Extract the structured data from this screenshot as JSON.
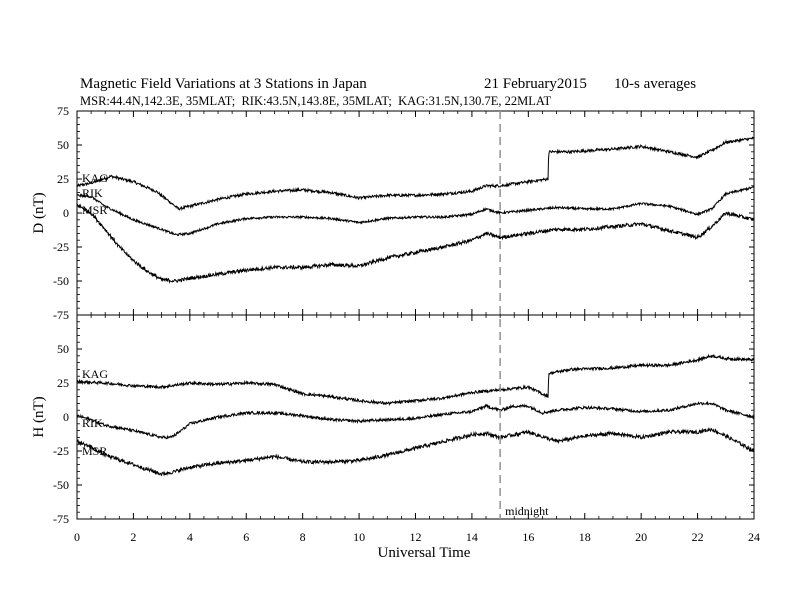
{
  "chart_data": {
    "type": "line",
    "title": "Magnetic Field Variations at 3 Stations in Japan",
    "date": "21 February2015",
    "averaging": "10-s averages",
    "subtitle": "MSR:44.4N,142.3E, 35MLAT;  RIK:43.5N,143.8E, 35MLAT;  KAG:31.5N,130.7E, 22MLAT",
    "xlabel": "Universal Time",
    "xlim": [
      0,
      24
    ],
    "xticks": [
      0,
      2,
      4,
      6,
      8,
      10,
      12,
      14,
      16,
      18,
      20,
      22,
      24
    ],
    "marker": {
      "x": 15,
      "label": "midnight"
    },
    "panels": [
      {
        "ylabel": "D (nT)",
        "ylim": [
          -75,
          75
        ],
        "yticks": [
          75,
          50,
          25,
          0,
          -25,
          -50,
          -75
        ],
        "series": [
          {
            "name": "KAG",
            "x": [
              0,
              0.5,
              1.2,
              2,
              2.8,
              3.3,
              3.6,
              4,
              5,
              6,
              7,
              8,
              9,
              10,
              11,
              12,
              13,
              14,
              14.5,
              15,
              16,
              16.7,
              16.72,
              17.5,
              19,
              20,
              21,
              22,
              22.5,
              23,
              24
            ],
            "y": [
              20,
              22,
              27,
              23,
              16,
              8,
              3,
              5,
              10,
              14,
              16,
              17,
              15,
              11,
              13,
              13,
              14,
              16,
              20,
              20,
              23,
              25,
              45,
              45,
              47,
              49,
              45,
              41,
              46,
              52,
              55
            ],
            "noise": 1.0
          },
          {
            "name": "RIK",
            "x": [
              0,
              0.5,
              1,
              2,
              3,
              3.5,
              4,
              5,
              6,
              7,
              8,
              9,
              10,
              11,
              12,
              13,
              14,
              14.5,
              15,
              16,
              17,
              18,
              19,
              20,
              21,
              22,
              22.5,
              23,
              24
            ],
            "y": [
              13,
              12,
              5,
              -5,
              -12,
              -16,
              -15,
              -8,
              -4,
              -3,
              -3,
              -4,
              -7,
              -4,
              -3,
              -3,
              -1,
              3,
              0,
              2,
              4,
              3,
              3,
              7,
              5,
              -1,
              3,
              14,
              19
            ],
            "noise": 0.8
          },
          {
            "name": "MSR",
            "x": [
              0,
              0.5,
              1,
              1.5,
              2,
              2.5,
              3,
              3.5,
              4,
              5,
              6,
              7,
              8,
              9,
              10,
              10.5,
              11,
              12,
              13,
              14,
              14.5,
              15,
              16,
              17,
              18,
              19,
              20,
              21,
              22,
              22.5,
              23,
              24
            ],
            "y": [
              6,
              0,
              -12,
              -25,
              -35,
              -43,
              -49,
              -50,
              -48,
              -45,
              -42,
              -40,
              -40,
              -38,
              -39,
              -36,
              -33,
              -29,
              -25,
              -20,
              -15,
              -18,
              -15,
              -12,
              -12,
              -10,
              -8,
              -13,
              -18,
              -10,
              0,
              -5
            ],
            "noise": 1.3
          }
        ]
      },
      {
        "ylabel": "H (nT)",
        "ylim": [
          -75,
          75
        ],
        "yticks": [
          50,
          25,
          0,
          -25,
          -50,
          -75
        ],
        "series": [
          {
            "name": "KAG",
            "x": [
              0,
              1,
              2,
              3,
              4,
              5,
              6,
              7,
              8,
              9,
              10,
              11,
              12,
              13,
              14,
              15,
              16,
              16.7,
              16.72,
              17.5,
              19,
              20,
              21,
              22,
              22.5,
              23,
              24
            ],
            "y": [
              26,
              25,
              23,
              22,
              25,
              24,
              25,
              24,
              17,
              15,
              12,
              10,
              12,
              14,
              18,
              20,
              22,
              15,
              32,
              35,
              36,
              38,
              38,
              42,
              45,
              43,
              42
            ],
            "noise": 1.0
          },
          {
            "name": "RIK",
            "x": [
              0,
              0.5,
              1,
              2,
              3,
              3.3,
              3.5,
              4,
              5,
              6,
              7,
              8,
              9,
              10,
              11,
              12,
              13,
              14,
              14.5,
              15,
              15.5,
              16,
              16.5,
              17,
              18,
              19,
              20,
              21,
              22,
              22.5,
              23,
              24
            ],
            "y": [
              1,
              -2,
              -6,
              -10,
              -15,
              -15,
              -13,
              -5,
              0,
              3,
              3,
              1,
              -2,
              -3,
              -2,
              -1,
              2,
              4,
              8,
              5,
              8,
              8,
              3,
              5,
              7,
              6,
              4,
              5,
              10,
              10,
              5,
              0
            ],
            "noise": 1.0
          },
          {
            "name": "MSR",
            "x": [
              0,
              0.5,
              1,
              2,
              3,
              3.5,
              4,
              5,
              6,
              7,
              8,
              9,
              10,
              11,
              12,
              13,
              14,
              14.5,
              15,
              15.5,
              16,
              17,
              18,
              19,
              20,
              21,
              22,
              22.5,
              23,
              24
            ],
            "y": [
              -18,
              -22,
              -28,
              -35,
              -42,
              -40,
              -37,
              -34,
              -32,
              -29,
              -33,
              -33,
              -32,
              -28,
              -23,
              -18,
              -13,
              -12,
              -15,
              -13,
              -11,
              -18,
              -14,
              -12,
              -15,
              -11,
              -11,
              -9,
              -14,
              -25
            ],
            "noise": 1.3
          }
        ]
      }
    ]
  }
}
